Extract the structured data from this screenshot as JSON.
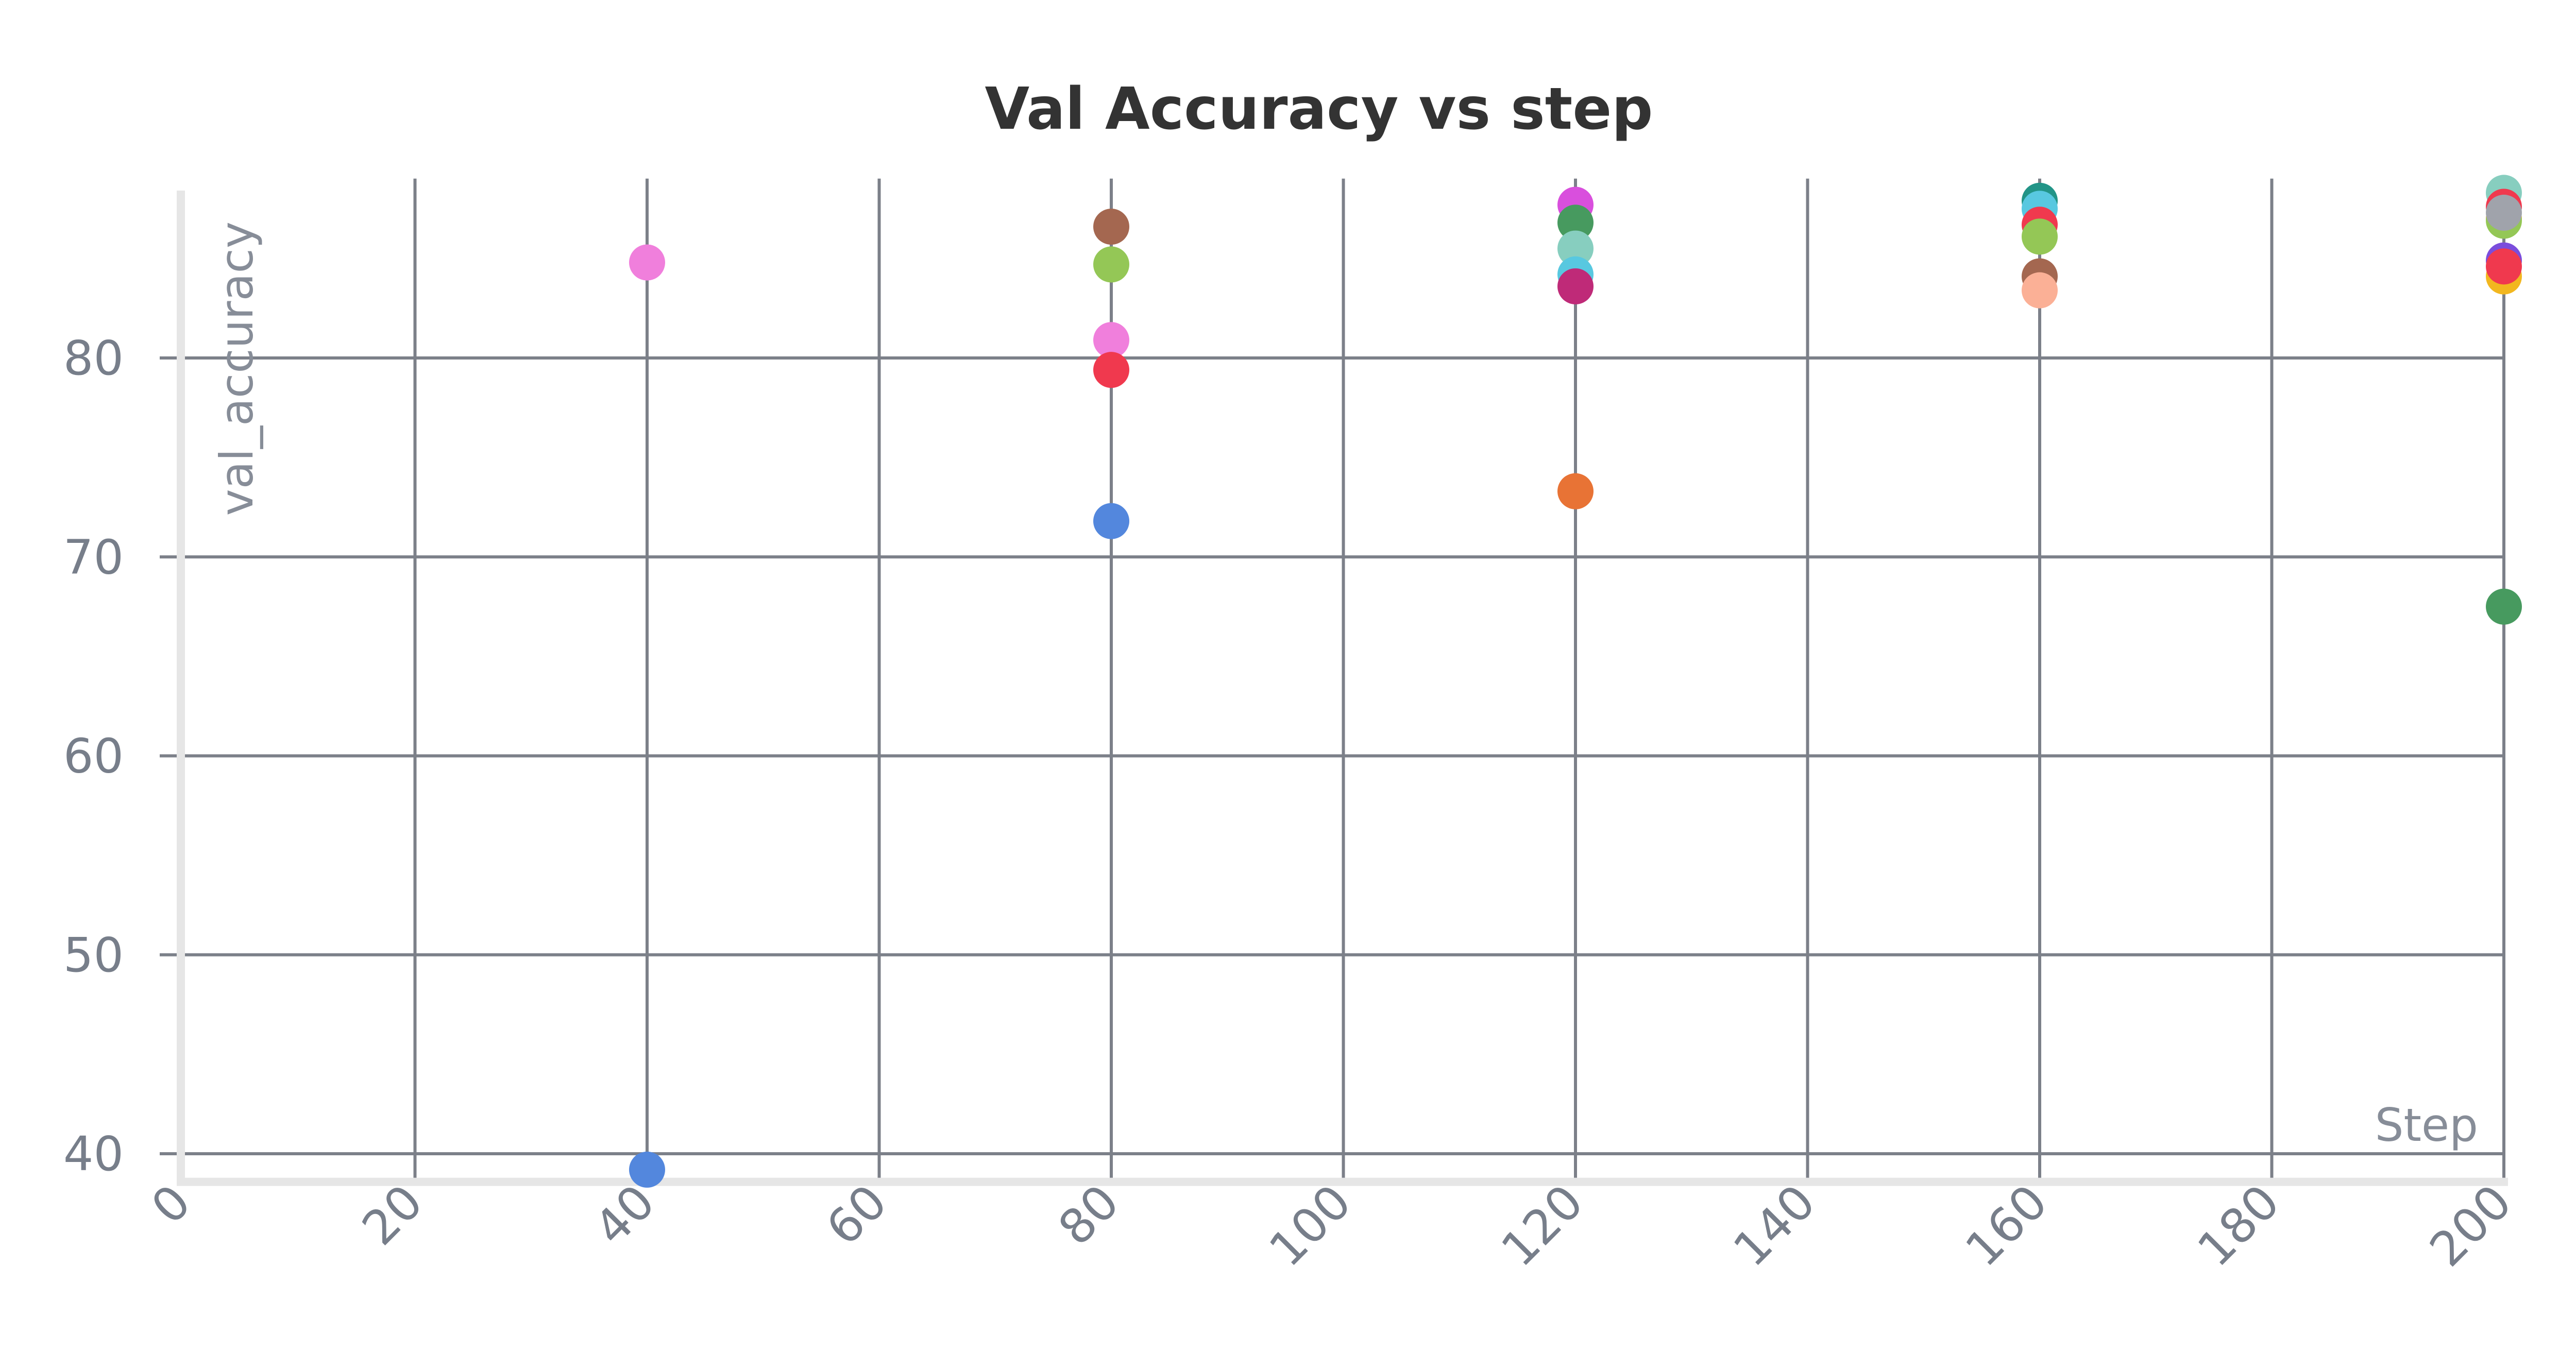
{
  "chart_data": {
    "type": "scatter",
    "title": "Val Accuracy vs step",
    "xlabel": "Step",
    "ylabel": "val_accuracy",
    "xlim": [
      0,
      200
    ],
    "ylim": [
      39,
      88.5
    ],
    "x_ticks": [
      0,
      20,
      40,
      60,
      80,
      100,
      120,
      140,
      160,
      180,
      200
    ],
    "y_ticks": [
      40,
      50,
      60,
      70,
      80
    ],
    "grid": true,
    "legend": "none",
    "points": [
      {
        "x": 40,
        "y": 84.8,
        "color": "#f07fdc"
      },
      {
        "x": 40,
        "y": 39.2,
        "color": "#5387dd"
      },
      {
        "x": 80,
        "y": 86.6,
        "color": "#a46750"
      },
      {
        "x": 80,
        "y": 84.7,
        "color": "#94c756"
      },
      {
        "x": 80,
        "y": 80.9,
        "color": "#f07fdc"
      },
      {
        "x": 80,
        "y": 79.4,
        "color": "#f0394e"
      },
      {
        "x": 80,
        "y": 71.8,
        "color": "#5387dd"
      },
      {
        "x": 120,
        "y": 87.7,
        "color": "#d94fdd"
      },
      {
        "x": 120,
        "y": 86.8,
        "color": "#479a5f"
      },
      {
        "x": 120,
        "y": 85.5,
        "color": "#87cebf"
      },
      {
        "x": 120,
        "y": 84.2,
        "color": "#58c8e0"
      },
      {
        "x": 120,
        "y": 83.6,
        "color": "#bf2a78"
      },
      {
        "x": 120,
        "y": 73.3,
        "color": "#e87335"
      },
      {
        "x": 160,
        "y": 87.9,
        "color": "#229487"
      },
      {
        "x": 160,
        "y": 87.5,
        "color": "#58c8e0"
      },
      {
        "x": 160,
        "y": 86.7,
        "color": "#f0394e"
      },
      {
        "x": 160,
        "y": 86.1,
        "color": "#94c756"
      },
      {
        "x": 160,
        "y": 84.1,
        "color": "#a46750"
      },
      {
        "x": 160,
        "y": 83.4,
        "color": "#fbb096"
      },
      {
        "x": 200,
        "y": 88.3,
        "color": "#87cebf"
      },
      {
        "x": 200,
        "y": 87.6,
        "color": "#f0394e"
      },
      {
        "x": 200,
        "y": 87.0,
        "color": "#f2b71f"
      },
      {
        "x": 200,
        "y": 86.9,
        "color": "#94c756"
      },
      {
        "x": 200,
        "y": 87.3,
        "color": "#a0a3ab"
      },
      {
        "x": 200,
        "y": 84.9,
        "color": "#7b4ddc"
      },
      {
        "x": 200,
        "y": 84.1,
        "color": "#f2b71f"
      },
      {
        "x": 200,
        "y": 84.6,
        "color": "#f0394e"
      },
      {
        "x": 200,
        "y": 67.5,
        "color": "#479a5f"
      }
    ]
  },
  "colors": {
    "grid": "#7c8089",
    "axis_line": "#e6e6e6",
    "tick_text": "#777e8a",
    "title_text": "#333333"
  }
}
